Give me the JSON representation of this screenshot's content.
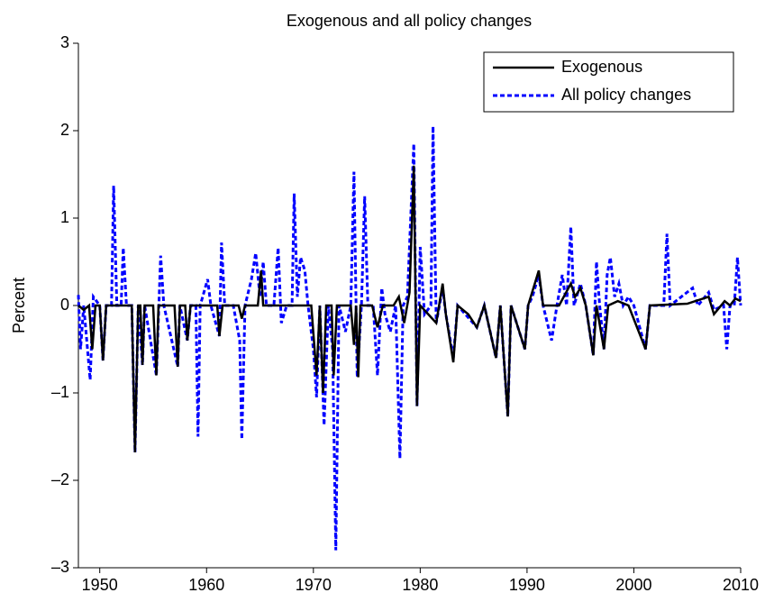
{
  "chart_data": {
    "type": "line",
    "title": "Exogenous and all policy changes",
    "y_label": "Percent",
    "xlim": [
      1948,
      2010
    ],
    "xticks": [
      1950,
      1960,
      1970,
      1980,
      1990,
      2000,
      2010
    ],
    "ylim": [
      -3,
      3
    ],
    "yticks": [
      {
        "value": -3,
        "label": "–3"
      },
      {
        "value": -2,
        "label": "–2"
      },
      {
        "value": -1,
        "label": "–1"
      },
      0,
      1,
      2,
      3
    ],
    "legend_position": "upper right",
    "series": [
      {
        "name": "Exogenous",
        "color": "#000000",
        "dash": "solid",
        "x": [
          1948.0,
          1948.5,
          1949.0,
          1949.3,
          1949.6,
          1950.0,
          1950.3,
          1950.6,
          1953.0,
          1953.3,
          1953.6,
          1953.8,
          1954.0,
          1954.2,
          1955.0,
          1955.3,
          1955.5,
          1957.0,
          1957.3,
          1957.5,
          1958.0,
          1958.2,
          1958.5,
          1961.0,
          1961.2,
          1961.5,
          1963.0,
          1963.3,
          1963.6,
          1964.8,
          1965.1,
          1965.3,
          1969.8,
          1970.3,
          1970.6,
          1970.9,
          1971.2,
          1971.7,
          1971.9,
          1972.2,
          1973.5,
          1973.8,
          1974.0,
          1974.2,
          1974.4,
          1975.5,
          1976.0,
          1976.5,
          1977.5,
          1978.0,
          1978.5,
          1979.0,
          1979.4,
          1979.7,
          1980.0,
          1981.5,
          1982.1,
          1982.4,
          1983.1,
          1983.5,
          1984.5,
          1985.3,
          1986.0,
          1987.1,
          1987.5,
          1988.2,
          1988.5,
          1989.8,
          1990.1,
          1991.1,
          1991.5,
          1993.0,
          1994.1,
          1994.5,
          1995.0,
          1995.5,
          1996.2,
          1996.5,
          1997.2,
          1997.6,
          1998.5,
          1999.5,
          2001.1,
          2001.5,
          2005.0,
          2007.0,
          2007.5,
          2008.5,
          2009.0,
          2009.5,
          2010.0
        ],
        "values": [
          0,
          -0.05,
          0,
          -0.5,
          0,
          0,
          -0.63,
          0,
          0,
          -1.68,
          0,
          0,
          -0.68,
          0,
          0,
          -0.8,
          0,
          0,
          -0.7,
          0,
          0,
          -0.4,
          0,
          0,
          -0.35,
          0,
          0,
          -0.15,
          0,
          0,
          0.4,
          0,
          0,
          -0.8,
          0,
          -1.0,
          0,
          0,
          -0.8,
          0,
          0,
          -0.45,
          0,
          -0.82,
          0,
          0,
          -0.25,
          0,
          0,
          0.1,
          -0.2,
          0.15,
          1.6,
          -1.15,
          0,
          -0.2,
          0.25,
          -0.1,
          -0.65,
          0,
          -0.1,
          -0.25,
          0,
          -0.6,
          0,
          -1.27,
          0,
          -0.5,
          0,
          0.4,
          0,
          0,
          0.25,
          0.1,
          0.2,
          0,
          -0.57,
          0,
          -0.5,
          0,
          0.05,
          0,
          -0.5,
          0,
          0.02,
          0.1,
          -0.1,
          0.05,
          0,
          0.08,
          0.05
        ]
      },
      {
        "name": "All policy changes",
        "color": "#0000ff",
        "dash": "dotted",
        "x": [
          1948.0,
          1948.2,
          1948.5,
          1949.1,
          1949.4,
          1950.0,
          1950.3,
          1950.6,
          1951.1,
          1951.3,
          1951.6,
          1952.0,
          1952.2,
          1952.5,
          1953.0,
          1953.3,
          1953.6,
          1954.0,
          1954.2,
          1955.3,
          1955.7,
          1956.0,
          1957.3,
          1957.5,
          1958.2,
          1958.5,
          1959.0,
          1959.2,
          1959.4,
          1960.1,
          1960.4,
          1961.2,
          1961.4,
          1961.7,
          1962.5,
          1963.1,
          1963.3,
          1963.6,
          1964.2,
          1964.6,
          1965.0,
          1965.3,
          1965.6,
          1966.3,
          1966.7,
          1967.0,
          1967.5,
          1968.0,
          1968.2,
          1968.5,
          1968.8,
          1969.2,
          1969.5,
          1970.0,
          1970.3,
          1970.6,
          1971.0,
          1971.4,
          1971.8,
          1972.1,
          1972.4,
          1973.0,
          1973.5,
          1973.8,
          1974.1,
          1974.5,
          1974.8,
          1975.1,
          1975.6,
          1976.0,
          1976.4,
          1976.7,
          1977.2,
          1977.7,
          1978.1,
          1978.4,
          1978.8,
          1979.4,
          1979.7,
          1980.0,
          1980.4,
          1981.0,
          1981.2,
          1981.5,
          1982.1,
          1982.4,
          1983.1,
          1983.5,
          1985.3,
          1986.0,
          1987.1,
          1987.5,
          1988.2,
          1988.5,
          1989.8,
          1990.1,
          1990.5,
          1991.1,
          1991.5,
          1992.3,
          1992.8,
          1993.3,
          1993.7,
          1994.1,
          1994.4,
          1995.0,
          1995.5,
          1996.2,
          1996.5,
          1996.8,
          1997.2,
          1997.5,
          1997.8,
          1998.2,
          1998.6,
          1999.0,
          1999.5,
          2000.0,
          2001.1,
          2001.5,
          2002.8,
          2003.1,
          2003.4,
          2005.5,
          2006.0,
          2007.0,
          2007.5,
          2008.4,
          2008.7,
          2009.0,
          2009.4,
          2009.7,
          2010.0
        ],
        "values": [
          0.12,
          -0.5,
          0,
          -0.85,
          0.1,
          0,
          -0.63,
          0,
          0,
          1.37,
          0,
          0,
          0.66,
          0,
          0,
          -1.68,
          0,
          -0.68,
          0,
          -0.8,
          0.57,
          0,
          -0.7,
          0,
          -0.4,
          0,
          0,
          -1.5,
          0,
          0.3,
          0,
          -0.35,
          0.72,
          0,
          0,
          -0.4,
          -1.53,
          0,
          0.3,
          0.6,
          0.1,
          0.5,
          0,
          0,
          0.66,
          -0.2,
          0,
          0,
          1.28,
          0.1,
          0.55,
          0.4,
          0,
          -0.5,
          -1.05,
          0,
          -1.37,
          0,
          -0.5,
          -2.8,
          0,
          -0.3,
          0,
          1.53,
          -0.82,
          0,
          1.25,
          0,
          0,
          -0.8,
          0.2,
          -0.1,
          -0.3,
          0,
          -1.75,
          0,
          0.1,
          1.85,
          -1.15,
          0.67,
          -0.1,
          0,
          2.05,
          -0.2,
          0.2,
          -0.1,
          -0.6,
          0,
          -0.25,
          0,
          -0.6,
          0,
          -1.27,
          0,
          -0.5,
          0,
          0.1,
          0.35,
          0,
          -0.4,
          0,
          0.35,
          0,
          0.9,
          0,
          0.25,
          0,
          -0.57,
          0.5,
          0,
          -0.5,
          0.35,
          0.55,
          0.1,
          0.25,
          0,
          0.1,
          0,
          -0.5,
          0,
          0,
          0.82,
          0,
          0.2,
          0,
          0.15,
          -0.05,
          0,
          -0.5,
          0,
          0,
          0.55,
          0
        ]
      }
    ]
  }
}
